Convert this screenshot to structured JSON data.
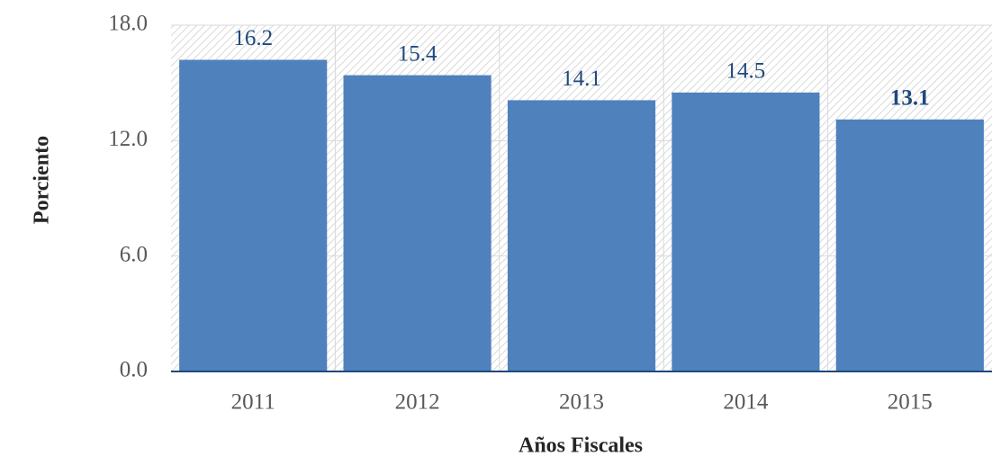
{
  "chart_data": {
    "type": "bar",
    "categories": [
      "2011",
      "2012",
      "2013",
      "2014",
      "2015"
    ],
    "values": [
      16.2,
      15.4,
      14.1,
      14.5,
      13.1
    ],
    "color": "#4f81bd",
    "xlabel": "Años Fiscales",
    "ylabel": "Porciento",
    "ylim": [
      0,
      18
    ],
    "yticks": [
      {
        "value": 0,
        "label": "0.0"
      },
      {
        "value": 6,
        "label": "6.0"
      },
      {
        "value": 12,
        "label": "12.0"
      },
      {
        "value": 18,
        "label": "18.0"
      }
    ],
    "grid": true
  }
}
